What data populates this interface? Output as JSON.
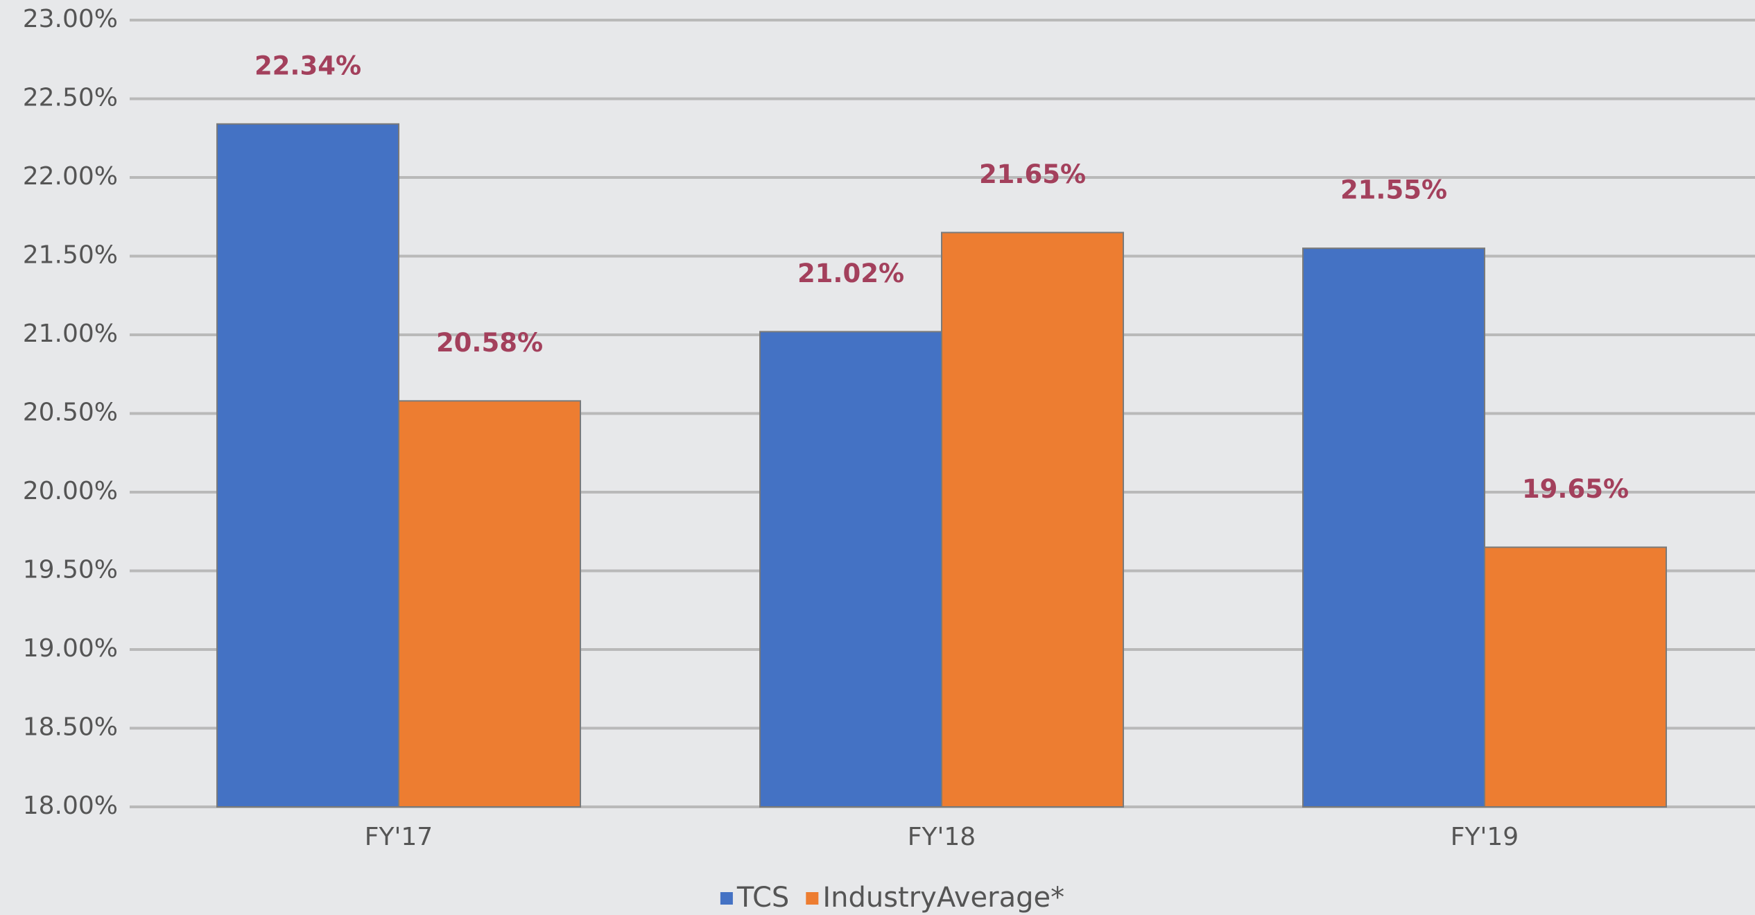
{
  "chart_data": {
    "type": "bar",
    "categories": [
      "FY'17",
      "FY'18",
      "FY'19"
    ],
    "series": [
      {
        "name": "TCS",
        "color": "#4472c4",
        "values": [
          22.34,
          21.02,
          21.55
        ],
        "value_labels": [
          "22.34%",
          "21.02%",
          "21.55%"
        ]
      },
      {
        "name": "IndustryAverage*",
        "color": "#ed7d31",
        "values": [
          20.58,
          21.65,
          19.65
        ],
        "value_labels": [
          "20.58%",
          "21.65%",
          "19.65%"
        ]
      }
    ],
    "ylim": [
      18,
      23
    ],
    "yticks": [
      {
        "value": 18,
        "label": "18.00%"
      },
      {
        "value": 18.5,
        "label": "18.50%"
      },
      {
        "value": 19,
        "label": "19.00%"
      },
      {
        "value": 19.5,
        "label": "19.50%"
      },
      {
        "value": 20,
        "label": "20.00%"
      },
      {
        "value": 20.5,
        "label": "20.50%"
      },
      {
        "value": 21,
        "label": "21.00%"
      },
      {
        "value": 21.5,
        "label": "21.50%"
      },
      {
        "value": 22,
        "label": "22.00%"
      },
      {
        "value": 22.5,
        "label": "22.50%"
      },
      {
        "value": 23,
        "label": "23.00%"
      }
    ],
    "grid": true,
    "legend": "bottom",
    "value_label_color": "#a3405c"
  }
}
